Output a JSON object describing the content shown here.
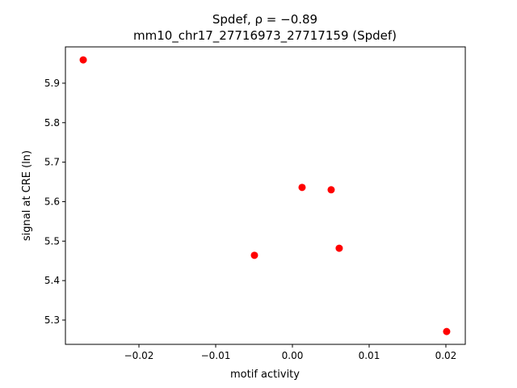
{
  "chart_data": {
    "type": "scatter",
    "title": "Spdef, ρ = −0.89",
    "subtitle": "mm10_chr17_27716973_27717159 (Spdef)",
    "x_label": "motif activity",
    "y_label": "signal at CRE (ln)",
    "color": "#ff0000",
    "x": [
      -0.02726,
      0.00126,
      0.00505,
      -0.00495,
      0.0061,
      0.0201
    ],
    "values": [
      5.959,
      5.636,
      5.63,
      5.464,
      5.482,
      5.271
    ],
    "xlim": [
      -0.02958,
      0.02253
    ],
    "ylim": [
      5.2385,
      5.992
    ],
    "xticks": [
      {
        "value": -0.02,
        "label": "−0.02"
      },
      {
        "value": -0.01,
        "label": "−0.01"
      },
      {
        "value": 0,
        "label": "0.00"
      },
      0.01,
      0.02
    ],
    "yticks": [
      5.3,
      5.4,
      5.5,
      5.6,
      5.7,
      5.8,
      5.9
    ]
  }
}
